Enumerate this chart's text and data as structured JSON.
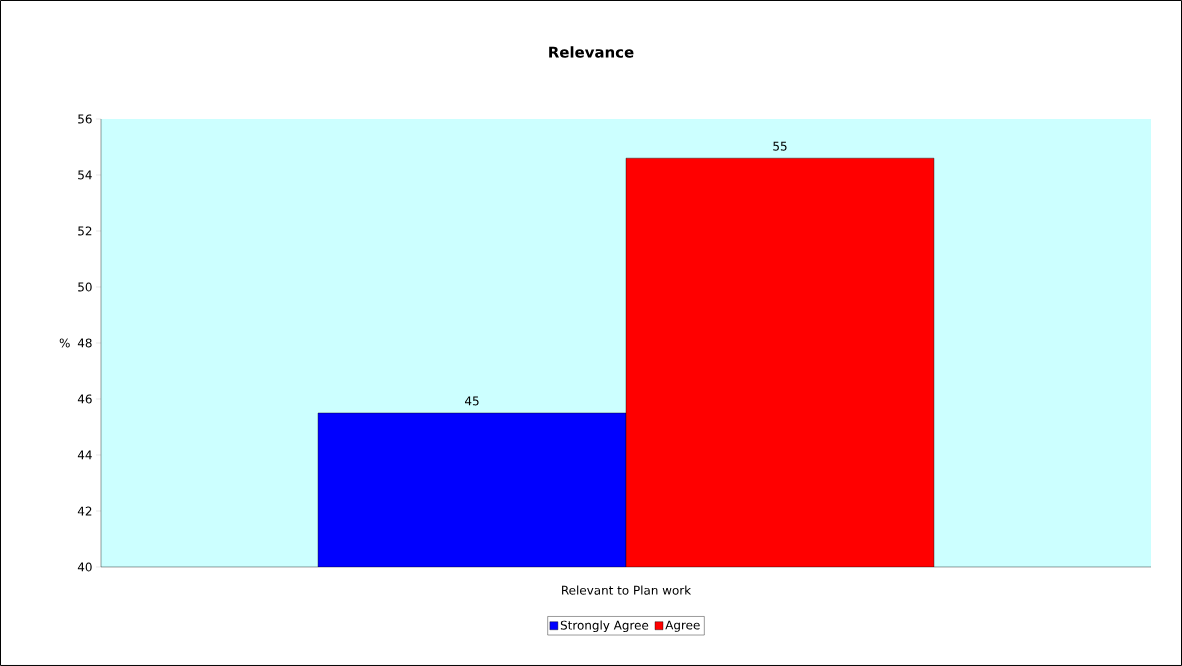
{
  "chart_data": {
    "type": "bar",
    "title": "Relevance",
    "ylabel": "%",
    "categories": [
      "Relevant to Plan  work"
    ],
    "series": [
      {
        "name": "Strongly Agree",
        "color": "#0000ff",
        "values": [
          45.5
        ],
        "value_labels": [
          "45"
        ]
      },
      {
        "name": "Agree",
        "color": "#ff0000",
        "values": [
          54.6
        ],
        "value_labels": [
          "55"
        ]
      }
    ],
    "ylim": [
      40,
      56
    ],
    "yticks": [
      40,
      42,
      44,
      46,
      48,
      50,
      52,
      54,
      56
    ],
    "grid": false,
    "legend": "bottom"
  }
}
